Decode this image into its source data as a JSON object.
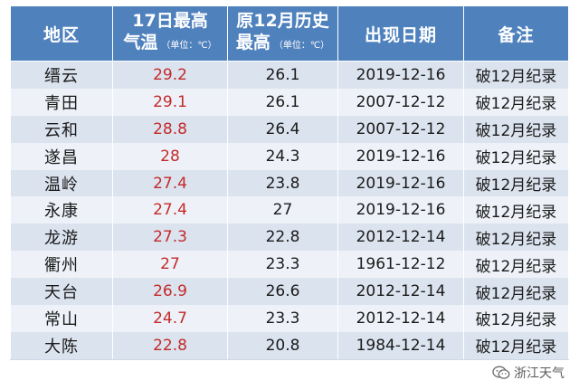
{
  "table": {
    "headers": {
      "region": "地区",
      "max_temp_line1": "17日最高",
      "max_temp_line2": "气温",
      "max_temp_unit": "（单位：℃）",
      "prev_record_line1": "原12月历史",
      "prev_record_line2": "最高",
      "prev_record_unit": "（单位：℃）",
      "date": "出现日期",
      "note": "备注"
    },
    "rows": [
      {
        "region": "缙云",
        "temp": "29.2",
        "prev": "26.1",
        "date": "2019-12-16",
        "note": "破12月纪录"
      },
      {
        "region": "青田",
        "temp": "29.1",
        "prev": "26.1",
        "date": "2007-12-12",
        "note": "破12月纪录"
      },
      {
        "region": "云和",
        "temp": "28.8",
        "prev": "26.4",
        "date": "2007-12-12",
        "note": "破12月纪录"
      },
      {
        "region": "遂昌",
        "temp": "28",
        "prev": "24.3",
        "date": "2019-12-16",
        "note": "破12月纪录"
      },
      {
        "region": "温岭",
        "temp": "27.4",
        "prev": "23.8",
        "date": "2019-12-16",
        "note": "破12月纪录"
      },
      {
        "region": "永康",
        "temp": "27.4",
        "prev": "27",
        "date": "2019-12-16",
        "note": "破12月纪录"
      },
      {
        "region": "龙游",
        "temp": "27.3",
        "prev": "22.8",
        "date": "2012-12-14",
        "note": "破12月纪录"
      },
      {
        "region": "衢州",
        "temp": "27",
        "prev": "23.3",
        "date": "1961-12-12",
        "note": "破12月纪录"
      },
      {
        "region": "天台",
        "temp": "26.9",
        "prev": "26.6",
        "date": "2012-12-14",
        "note": "破12月纪录"
      },
      {
        "region": "常山",
        "temp": "24.7",
        "prev": "23.3",
        "date": "2012-12-14",
        "note": "破12月纪录"
      },
      {
        "region": "大陈",
        "temp": "22.8",
        "prev": "20.8",
        "date": "1984-12-14",
        "note": "破12月纪录"
      }
    ]
  },
  "watermark": {
    "text": "浙江天气",
    "icon": "wechat-icon"
  },
  "colors": {
    "header_bg": "#4f81bd",
    "row_odd": "#dbe3ef",
    "row_even": "#eef2f8",
    "temp_red": "#c42a2a"
  }
}
